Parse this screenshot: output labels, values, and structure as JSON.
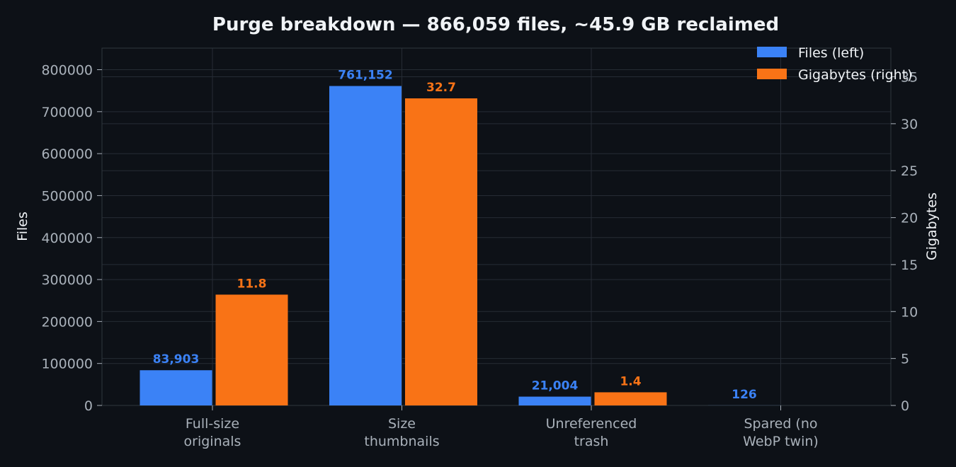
{
  "chart_data": {
    "type": "bar",
    "title": "Purge breakdown — 866,059 files, ~45.9 GB reclaimed",
    "categories": [
      [
        "Full-size",
        "originals"
      ],
      [
        "Size",
        "thumbnails"
      ],
      [
        "Unreferenced",
        "trash"
      ],
      [
        "Spared (no",
        "WebP twin)"
      ]
    ],
    "series": [
      {
        "name": "Files (left)",
        "axis": "left",
        "color": "#3b82f6",
        "values": [
          83903,
          761152,
          21004,
          126
        ],
        "labels": [
          "83,903",
          "761,152",
          "21,004",
          "126"
        ]
      },
      {
        "name": "Gigabytes (right)",
        "axis": "right",
        "color": "#f97316",
        "values": [
          11.8,
          32.7,
          1.4,
          0
        ],
        "labels": [
          "11.8",
          "32.7",
          "1.4",
          ""
        ]
      }
    ],
    "ylabel_left": "Files",
    "ylabel_right": "Gigabytes",
    "ylim_left": [
      0,
      800000
    ],
    "yticks_left": [
      "0",
      "100000",
      "200000",
      "300000",
      "400000",
      "500000",
      "600000",
      "700000",
      "800000"
    ],
    "ylim_right": [
      0,
      35
    ],
    "yticks_right": [
      "0",
      "5",
      "10",
      "15",
      "20",
      "25",
      "30",
      "35"
    ],
    "grid": true,
    "legend": "top-right"
  }
}
